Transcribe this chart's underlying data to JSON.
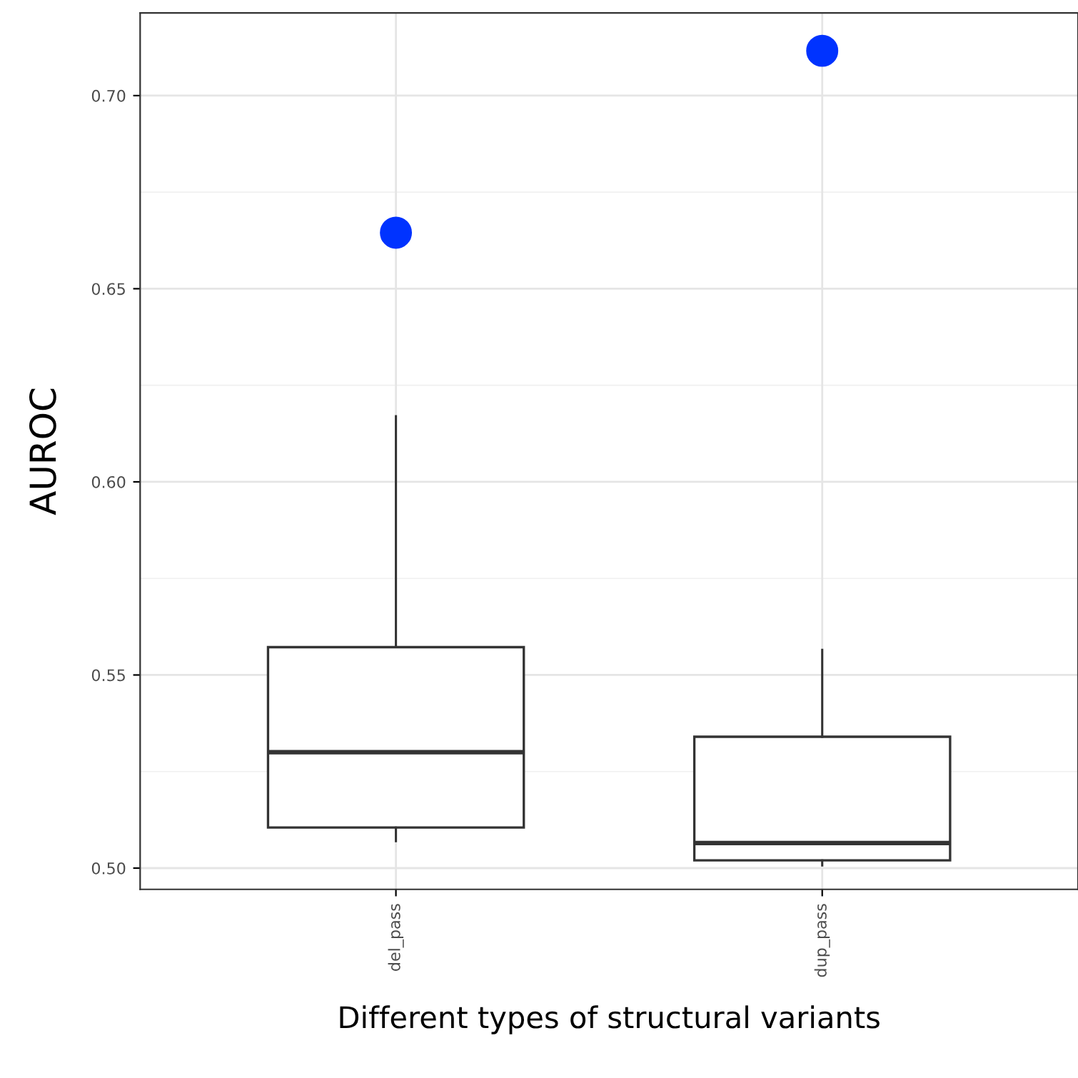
{
  "chart_data": {
    "type": "box",
    "xlabel": "Different types of structural variants",
    "ylabel": "AUROC",
    "categories": [
      "del_pass",
      "dup_pass"
    ],
    "boxes": [
      {
        "low": 0.507,
        "q1": 0.5105,
        "median": 0.53,
        "q3": 0.5572,
        "high": 0.617
      },
      {
        "low": 0.5007,
        "q1": 0.502,
        "median": 0.5065,
        "q3": 0.534,
        "high": 0.5565
      }
    ],
    "series": [
      {
        "type": "scatter",
        "color": "#0033ff",
        "x": [
          "del_pass",
          "dup_pass"
        ],
        "values": [
          0.6645,
          0.7116
        ]
      }
    ],
    "ylim": [
      0.4945,
      0.7214
    ],
    "yticks": [
      {
        "value": 0.5,
        "label": "0.50"
      },
      {
        "value": 0.55,
        "label": "0.55"
      },
      {
        "value": 0.6,
        "label": "0.60"
      },
      {
        "value": 0.65,
        "label": "0.65"
      },
      {
        "value": 0.7,
        "label": "0.70"
      }
    ],
    "grid": true,
    "marker": "circle"
  }
}
